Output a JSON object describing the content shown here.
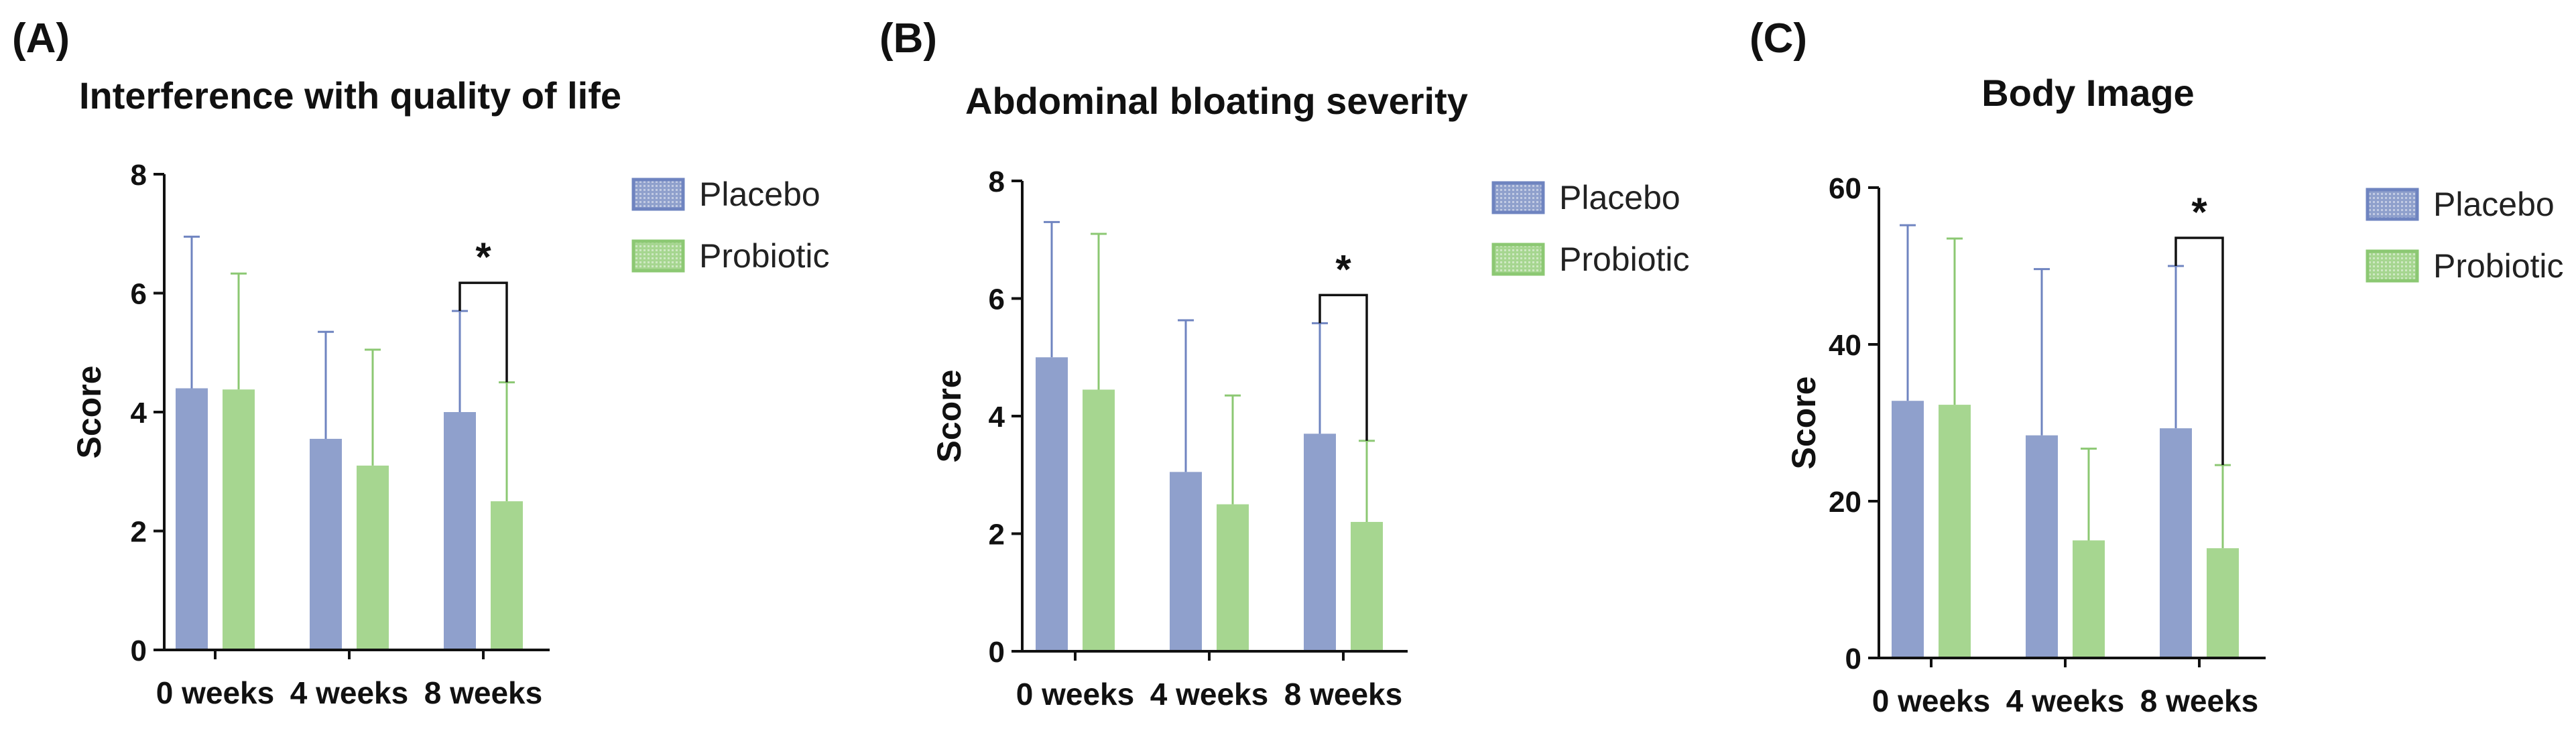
{
  "colors": {
    "placebo": "#8fa0cc",
    "placebo_dark": "#6f84c0",
    "probiotic": "#a6d690",
    "probiotic_dark": "#8cc873",
    "axis": "#111111"
  },
  "chart_data": [
    {
      "panel": "(A)",
      "type": "bar",
      "title": "Interference with quality of life",
      "ylabel": "Score",
      "xlabel": "",
      "categories": [
        "0 weeks",
        "4 weeks",
        "8 weeks"
      ],
      "ylim": [
        0,
        8
      ],
      "yticks": [
        0,
        2,
        4,
        6,
        8
      ],
      "legend_position": "right",
      "series": [
        {
          "name": "Placebo",
          "values": [
            4.4,
            3.55,
            4.0
          ],
          "errors": [
            2.55,
            1.8,
            1.7
          ]
        },
        {
          "name": "Probiotic",
          "values": [
            4.38,
            3.1,
            2.5
          ],
          "errors": [
            1.95,
            1.95,
            2.0
          ]
        }
      ],
      "significance": {
        "category": "8 weeks",
        "label": "*"
      }
    },
    {
      "panel": "(B)",
      "type": "bar",
      "title": "Abdominal bloating severity",
      "ylabel": "Score",
      "xlabel": "",
      "categories": [
        "0 weeks",
        "4 weeks",
        "8 weeks"
      ],
      "ylim": [
        0,
        8
      ],
      "yticks": [
        0,
        2,
        4,
        6,
        8
      ],
      "legend_position": "right",
      "series": [
        {
          "name": "Placebo",
          "values": [
            5.0,
            3.05,
            3.7
          ],
          "errors": [
            2.3,
            2.58,
            1.88
          ]
        },
        {
          "name": "Probiotic",
          "values": [
            4.45,
            2.5,
            2.2
          ],
          "errors": [
            2.65,
            1.85,
            1.38
          ]
        }
      ],
      "significance": {
        "category": "8 weeks",
        "label": "*"
      }
    },
    {
      "panel": "(C)",
      "type": "bar",
      "title": "Body Image",
      "ylabel": "Score",
      "xlabel": "",
      "categories": [
        "0 weeks",
        "4 weeks",
        "8 weeks"
      ],
      "ylim": [
        0,
        60
      ],
      "yticks": [
        0,
        20,
        40,
        60
      ],
      "legend_position": "right",
      "series": [
        {
          "name": "Placebo",
          "values": [
            32.8,
            28.4,
            29.3
          ],
          "errors": [
            22.4,
            21.2,
            20.7
          ]
        },
        {
          "name": "Probiotic",
          "values": [
            32.3,
            15.0,
            14.0
          ],
          "errors": [
            21.2,
            11.7,
            10.6
          ]
        }
      ],
      "significance": {
        "category": "8 weeks",
        "label": "*"
      }
    }
  ]
}
